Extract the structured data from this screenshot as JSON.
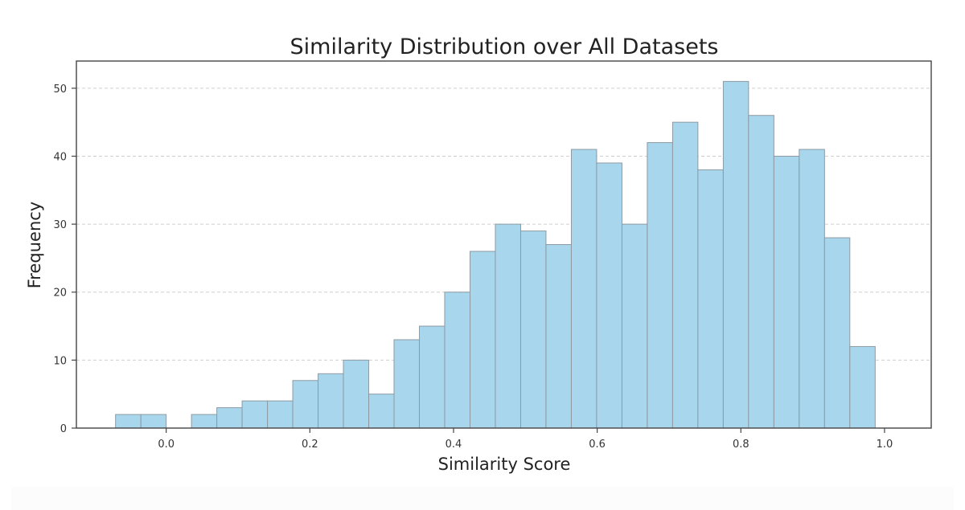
{
  "chart_data": {
    "type": "bar",
    "title": "Similarity Distribution over All Datasets",
    "xlabel": "Similarity Score",
    "ylabel": "Frequency",
    "xlim": [
      -0.125,
      1.065
    ],
    "ylim": [
      0,
      54
    ],
    "xticks": [
      0.0,
      0.2,
      0.4,
      0.6,
      0.8,
      1.0
    ],
    "xtick_labels": [
      "0.0",
      "0.2",
      "0.4",
      "0.6",
      "0.8",
      "1.0"
    ],
    "yticks": [
      0,
      10,
      20,
      30,
      40,
      50
    ],
    "ytick_labels": [
      "0",
      "10",
      "20",
      "30",
      "40",
      "50"
    ],
    "grid": "y-dashed",
    "bin_edges": [
      -0.0705,
      -0.0352,
      0.0,
      0.0352,
      0.0705,
      0.1057,
      0.141,
      0.1762,
      0.2115,
      0.2467,
      0.282,
      0.3172,
      0.3525,
      0.3877,
      0.423,
      0.4582,
      0.4935,
      0.5287,
      0.564,
      0.5992,
      0.6345,
      0.6697,
      0.705,
      0.7402,
      0.7755,
      0.8107,
      0.846,
      0.8812,
      0.9165,
      0.9517,
      0.987
    ],
    "values": [
      2,
      2,
      0,
      2,
      3,
      4,
      4,
      7,
      8,
      10,
      5,
      13,
      15,
      20,
      26,
      30,
      29,
      27,
      41,
      39,
      30,
      42,
      45,
      38,
      51,
      46,
      40,
      41,
      28,
      12
    ],
    "colors": {
      "bar_fill": "#a8d6ed",
      "bar_edge": "#8e9aa2",
      "grid": "#cfcfcf"
    }
  }
}
